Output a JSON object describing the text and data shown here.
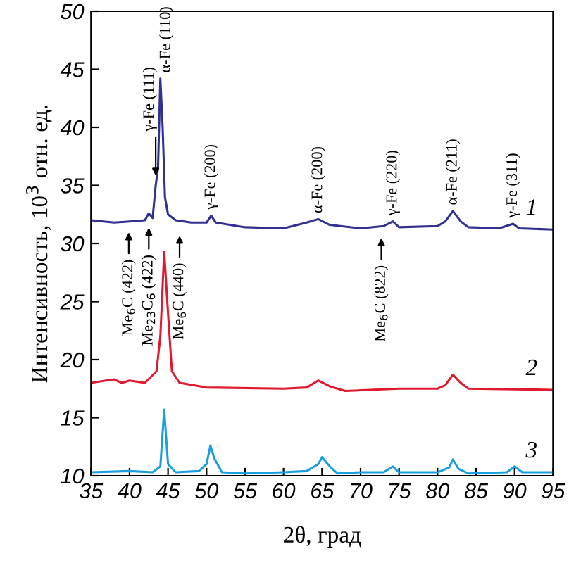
{
  "chart_data": {
    "type": "line",
    "xlabel": "2θ, град",
    "ylabel": "Интенсивность, 10$^{3}$ отн. ед.",
    "xlim": [
      35,
      95
    ],
    "ylim": [
      10,
      50
    ],
    "xticks": [
      35,
      40,
      45,
      50,
      55,
      60,
      65,
      70,
      75,
      80,
      85,
      90,
      95
    ],
    "yticks": [
      10,
      15,
      20,
      25,
      30,
      35,
      40,
      45,
      50
    ],
    "grid": false,
    "legend": false,
    "marker": "none",
    "line_style": "solid",
    "series": [
      {
        "name": "1",
        "color": "#33308f",
        "x": [
          35,
          38,
          40,
          42,
          42.5,
          43,
          43.4,
          43.7,
          44.0,
          44.3,
          44.6,
          45,
          46,
          48,
          50,
          50.6,
          51.2,
          55,
          60,
          63,
          64.5,
          66,
          70,
          73,
          74.2,
          75,
          80,
          81,
          82,
          83,
          84,
          88,
          89.8,
          90.6,
          95
        ],
        "values": [
          32,
          31.8,
          31.9,
          32,
          32.6,
          32.2,
          35,
          36.5,
          44.2,
          40,
          34,
          32.5,
          32,
          31.8,
          31.8,
          32.4,
          31.8,
          31.4,
          31.3,
          31.8,
          32.1,
          31.6,
          31.3,
          31.5,
          31.9,
          31.4,
          31.5,
          31.9,
          32.8,
          31.9,
          31.4,
          31.3,
          31.7,
          31.3,
          31.2
        ]
      },
      {
        "name": "2",
        "color": "#e0192e",
        "x": [
          35,
          38,
          39,
          40,
          42,
          43.5,
          44,
          44.5,
          45,
          45.5,
          46.5,
          50,
          60,
          63,
          64.5,
          66,
          68,
          75,
          80,
          81,
          82,
          83,
          84,
          95
        ],
        "values": [
          18,
          18.3,
          18,
          18.2,
          18,
          19,
          22,
          29.3,
          24,
          19,
          18,
          17.6,
          17.5,
          17.6,
          18.2,
          17.7,
          17.3,
          17.5,
          17.5,
          17.8,
          18.7,
          18,
          17.5,
          17.4
        ]
      },
      {
        "name": "3",
        "color": "#1a9fde",
        "x": [
          35,
          40,
          43,
          44,
          44.5,
          45,
          46,
          49,
          50,
          50.5,
          51,
          52,
          55,
          60,
          63,
          64.5,
          65,
          66,
          67,
          70,
          73,
          74.2,
          75,
          80,
          81.5,
          82,
          82.7,
          84,
          89,
          90,
          91,
          95
        ],
        "values": [
          10.3,
          10.4,
          10.3,
          10.8,
          15.7,
          11,
          10.3,
          10.4,
          11,
          12.6,
          11.5,
          10.3,
          10.2,
          10.3,
          10.4,
          11,
          11.6,
          10.8,
          10.2,
          10.3,
          10.3,
          10.8,
          10.3,
          10.3,
          10.7,
          11.4,
          10.6,
          10.2,
          10.3,
          10.8,
          10.3,
          10.3
        ]
      }
    ],
    "annotations": [
      {
        "text": "γ-Fe (111)",
        "x": 43.4,
        "y": 35.5
      },
      {
        "text": "α-Fe (110)",
        "x": 44.0,
        "y": 44.2
      },
      {
        "text": "γ-Fe (200)",
        "x": 50.6,
        "y": 32.4
      },
      {
        "text": "α-Fe (200)",
        "x": 64.5,
        "y": 32.1
      },
      {
        "text": "γ-Fe (220)",
        "x": 74.2,
        "y": 31.9
      },
      {
        "text": "α-Fe (211)",
        "x": 82,
        "y": 32.8
      },
      {
        "text": "γ-Fe (311)",
        "x": 89.8,
        "y": 31.7
      },
      {
        "text": "Me$_{6}$C (422)",
        "x": 39.9,
        "y": 31.8
      },
      {
        "text": "Me$_{23}$C$_{6}$ (422)",
        "x": 42.5,
        "y": 32.2
      },
      {
        "text": "Me$_{6}$C (440)",
        "x": 46.5,
        "y": 31.5
      },
      {
        "text": "Me$_{6}$C (822)",
        "x": 72.7,
        "y": 31.3
      }
    ]
  }
}
